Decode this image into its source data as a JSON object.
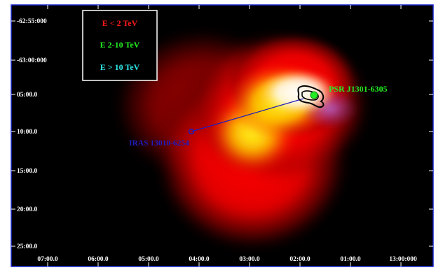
{
  "legend": {
    "items": [
      {
        "label": "E < 2 TeV",
        "color": "#ff1a1a"
      },
      {
        "label": "E 2-10 TeV",
        "color": "#22ee22"
      },
      {
        "label": "E > 10 TeV",
        "color": "#2fe6e6"
      }
    ]
  },
  "y_ticks": [
    "-62:55:000",
    "-63:00:000",
    "05:00.0",
    "10:00.0",
    "15:00.0",
    "20:00.0",
    "25:00.0"
  ],
  "x_ticks": [
    "07:00.0",
    "06:00.0",
    "05:00.0",
    "04:00.0",
    "03:00.0",
    "02:00.0",
    "01:00.0",
    "13:00:000"
  ],
  "annotations": {
    "psr_label": "PSR J1301-6305",
    "psr_color": "#22ee22",
    "iras_label": "IRAS 13010-6254",
    "iras_color": "#1d1dbf"
  },
  "colors": {
    "background": "#000000",
    "frame": "#1e2bd6",
    "emission_outer": "#ff0000",
    "emission_mid": "#ffee00",
    "emission_core": "#ffffff"
  }
}
